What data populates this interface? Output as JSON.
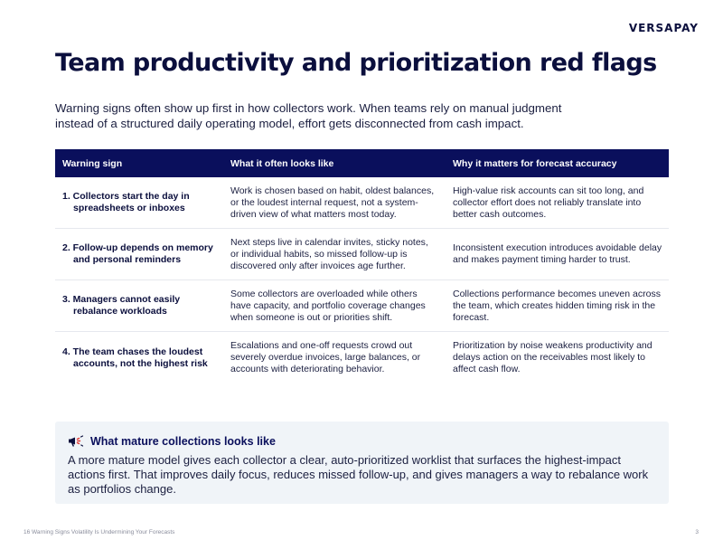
{
  "brand": "VERSAPAY",
  "title": "Team productivity and prioritization red flags",
  "intro": "Warning signs often show up first in how collectors work. When teams rely on manual judgment instead of a structured daily operating model, effort gets disconnected from cash impact.",
  "table": {
    "headers": [
      "Warning sign",
      "What it often looks like",
      "Why it matters for forecast accuracy"
    ],
    "rows": [
      {
        "sign": "1. Collectors start the day in spreadsheets or inboxes",
        "looks_like": "Work is chosen based on habit, oldest balances, or the loudest internal request, not a system-driven view of what matters most today.",
        "why": "High-value risk accounts can sit too long, and collector effort does not reliably translate into better cash outcomes."
      },
      {
        "sign": "2. Follow-up depends on memory and personal reminders",
        "looks_like": "Next steps live in calendar invites, sticky notes, or individual habits, so missed follow-up is discovered only after invoices age further.",
        "why": "Inconsistent execution introduces avoidable delay and makes payment timing harder to trust."
      },
      {
        "sign": "3. Managers cannot easily rebalance workloads",
        "looks_like": "Some collectors are overloaded while others have capacity, and portfolio coverage changes when someone is out or priorities shift.",
        "why": "Collections performance becomes uneven across the team, which creates hidden timing risk in the forecast."
      },
      {
        "sign": "4. The team chases the loudest accounts, not the highest risk",
        "looks_like": "Escalations and one-off requests crowd out severely overdue invoices, large balances, or accounts with deteriorating behavior.",
        "why": "Prioritization by noise weakens productivity and delays action on the receivables most likely to affect cash flow."
      }
    ]
  },
  "callout": {
    "icon": "megaphone-icon",
    "title": "What mature collections looks like",
    "body": "A more mature model gives each collector a clear, auto-prioritized worklist that surfaces the highest-impact actions first. That improves daily focus, reduces missed follow-up, and gives managers a way to rebalance work as portfolios change."
  },
  "footer": {
    "left": "16 Warning Signs Volatility Is Undermining Your Forecasts",
    "page": "3"
  },
  "colors": {
    "header_bg": "#0a0f5c",
    "callout_bg": "#f0f4f8",
    "text": "#0b0f3d"
  }
}
